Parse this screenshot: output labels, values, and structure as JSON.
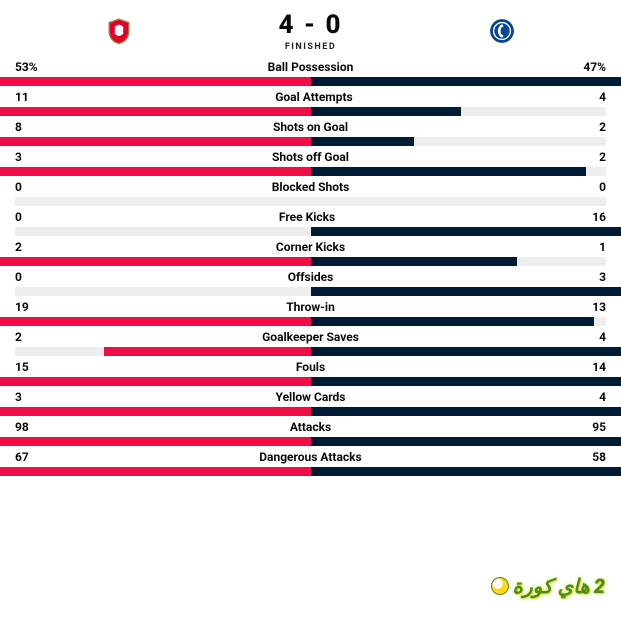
{
  "colors": {
    "home_bar": "#ef0c47",
    "away_bar": "#001c35",
    "track": "#eeeeee",
    "text": "#0a0a0a",
    "status": "#222222",
    "watermark_bg": "rgba(255,255,255,0.0)",
    "watermark_text": "#4a7d00",
    "watermark_shadow": "#c9ef3a",
    "watermark_ball_outer": "#ffd400",
    "watermark_ball_inner": "#f7f7f7"
  },
  "layout": {
    "stat_bar_half_max_pct": 70
  },
  "crests": {
    "home": {
      "name": "arsenal-crest",
      "bg": "#ffffff",
      "fill": "#e2002b",
      "outline": "#9c824a"
    },
    "away": {
      "name": "chelsea-crest",
      "bg": "#034694",
      "fill": "#ffffff",
      "outline": "#034694"
    }
  },
  "match": {
    "home_score": "4",
    "separator": "-",
    "away_score": "0",
    "status": "FINISHED"
  },
  "watermark": {
    "text": "هاي كورة",
    "tag": "2"
  },
  "stats": [
    {
      "label": "Ball Possession",
      "home_display": "53%",
      "away_display": "47%",
      "home_val": 53,
      "away_val": 47
    },
    {
      "label": "Goal Attempts",
      "home_display": "11",
      "away_display": "4",
      "home_val": 11,
      "away_val": 4
    },
    {
      "label": "Shots on Goal",
      "home_display": "8",
      "away_display": "2",
      "home_val": 8,
      "away_val": 2
    },
    {
      "label": "Shots off Goal",
      "home_display": "3",
      "away_display": "2",
      "home_val": 3,
      "away_val": 2
    },
    {
      "label": "Blocked Shots",
      "home_display": "0",
      "away_display": "0",
      "home_val": 0,
      "away_val": 0
    },
    {
      "label": "Free Kicks",
      "home_display": "0",
      "away_display": "16",
      "home_val": 0,
      "away_val": 16
    },
    {
      "label": "Corner Kicks",
      "home_display": "2",
      "away_display": "1",
      "home_val": 2,
      "away_val": 1
    },
    {
      "label": "Offsides",
      "home_display": "0",
      "away_display": "3",
      "home_val": 0,
      "away_val": 3
    },
    {
      "label": "Throw-in",
      "home_display": "19",
      "away_display": "13",
      "home_val": 19,
      "away_val": 13
    },
    {
      "label": "Goalkeeper Saves",
      "home_display": "2",
      "away_display": "4",
      "home_val": 2,
      "away_val": 4
    },
    {
      "label": "Fouls",
      "home_display": "15",
      "away_display": "14",
      "home_val": 15,
      "away_val": 14
    },
    {
      "label": "Yellow Cards",
      "home_display": "3",
      "away_display": "4",
      "home_val": 3,
      "away_val": 4
    },
    {
      "label": "Attacks",
      "home_display": "98",
      "away_display": "95",
      "home_val": 98,
      "away_val": 95
    },
    {
      "label": "Dangerous Attacks",
      "home_display": "67",
      "away_display": "58",
      "home_val": 67,
      "away_val": 58
    }
  ]
}
